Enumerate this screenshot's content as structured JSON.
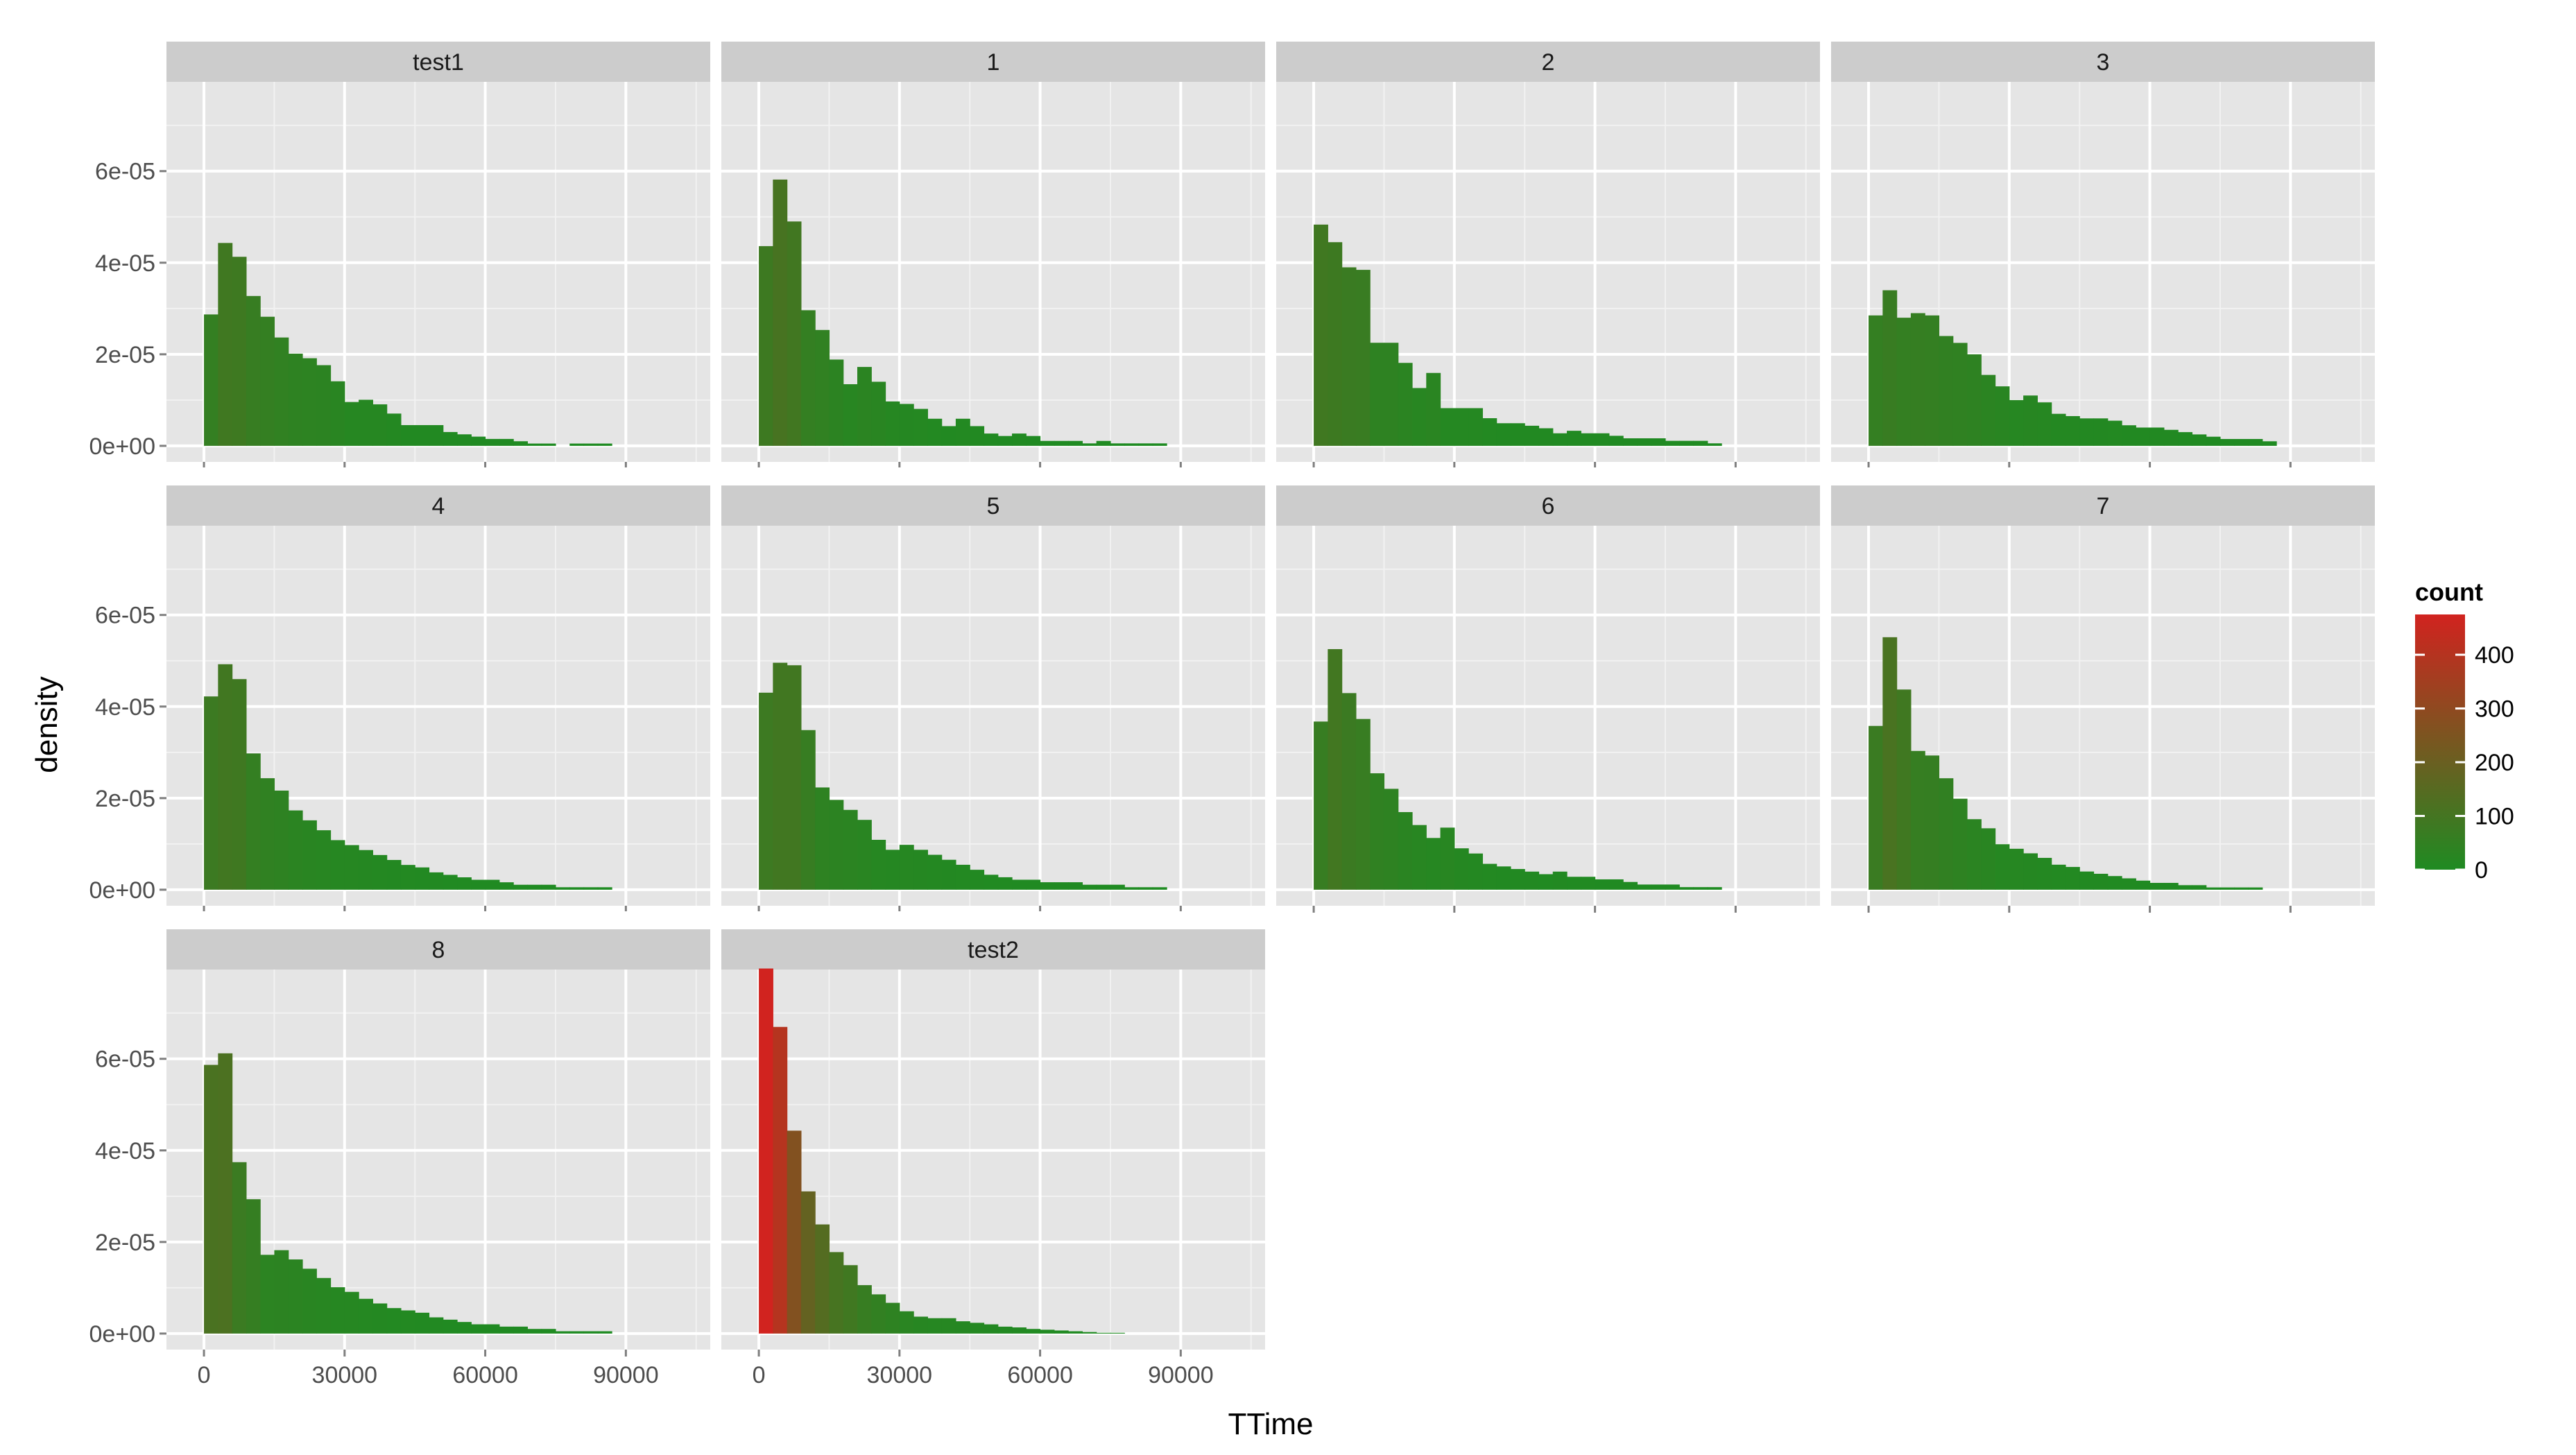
{
  "chart_data": {
    "type": "bar",
    "subtype": "faceted-histogram",
    "xlabel": "TTime",
    "ylabel": "density",
    "x_ticks": [
      0,
      30000,
      60000,
      90000
    ],
    "x_tick_labels": [
      "0",
      "30000",
      "60000",
      "90000"
    ],
    "y_ticks": [
      0,
      2e-05,
      4e-05,
      6e-05
    ],
    "y_tick_labels": [
      "0e+00",
      "2e-05",
      "4e-05",
      "6e-05"
    ],
    "xlim": [
      -8000,
      108000
    ],
    "ylim": [
      -3.5e-06,
      7.95e-05
    ],
    "bin_width": 3000,
    "bin_start": 0,
    "grid": true,
    "legend": {
      "title": "count",
      "position": "right",
      "breaks": [
        0,
        100,
        200,
        300,
        400
      ],
      "labels": [
        "0",
        "100",
        "200",
        "300",
        "400"
      ],
      "max": 475,
      "low_color": "#1f8b22",
      "high_color": "#d1231f"
    },
    "facets": [
      {
        "label": "test1",
        "counts": [
          57,
          88,
          82,
          65,
          56,
          47,
          40,
          38,
          35,
          28,
          19,
          20,
          18,
          14,
          9,
          9,
          9,
          6,
          5,
          4,
          3,
          3,
          2,
          1,
          1,
          0,
          1,
          1,
          1
        ]
      },
      {
        "label": "1",
        "counts": [
          81,
          108,
          91,
          55,
          47,
          35,
          25,
          32,
          26,
          18,
          17,
          15,
          11,
          8,
          11,
          8,
          5,
          4,
          5,
          4,
          2,
          2,
          2,
          1,
          2,
          1,
          1,
          1,
          1
        ]
      },
      {
        "label": "2",
        "counts": [
          88,
          81,
          71,
          70,
          41,
          41,
          33,
          23,
          29,
          15,
          15,
          15,
          11,
          9,
          9,
          8,
          7,
          5,
          6,
          5,
          5,
          4,
          3,
          3,
          3,
          2,
          2,
          2,
          1
        ]
      },
      {
        "label": "3",
        "counts": [
          57,
          68,
          56,
          58,
          57,
          48,
          45,
          40,
          31,
          26,
          20,
          22,
          19,
          14,
          13,
          12,
          12,
          11,
          9,
          8,
          8,
          7,
          6,
          5,
          4,
          3,
          3,
          3,
          2
        ]
      },
      {
        "label": "4",
        "counts": [
          78,
          91,
          85,
          55,
          45,
          40,
          32,
          28,
          24,
          20,
          18,
          16,
          14,
          12,
          10,
          9,
          7,
          6,
          5,
          4,
          4,
          3,
          2,
          2,
          2,
          1,
          1,
          1,
          1
        ]
      },
      {
        "label": "5",
        "counts": [
          79,
          91,
          90,
          64,
          41,
          36,
          32,
          28,
          20,
          16,
          18,
          16,
          14,
          12,
          10,
          8,
          6,
          5,
          4,
          4,
          3,
          3,
          3,
          2,
          2,
          2,
          1,
          1,
          1
        ]
      },
      {
        "label": "6",
        "counts": [
          65,
          93,
          76,
          66,
          45,
          39,
          30,
          25,
          20,
          24,
          16,
          14,
          10,
          9,
          8,
          7,
          6,
          7,
          5,
          5,
          4,
          4,
          3,
          2,
          2,
          2,
          1,
          1,
          1
        ]
      },
      {
        "label": "7",
        "counts": [
          72,
          111,
          88,
          61,
          59,
          49,
          40,
          31,
          27,
          20,
          18,
          16,
          14,
          11,
          10,
          8,
          7,
          6,
          5,
          4,
          3,
          3,
          2,
          2,
          1,
          1,
          1,
          1,
          0
        ]
      },
      {
        "label": "8",
        "counts": [
          116,
          121,
          74,
          58,
          34,
          36,
          32,
          28,
          24,
          20,
          18,
          15,
          13,
          11,
          10,
          9,
          7,
          6,
          5,
          4,
          4,
          3,
          3,
          2,
          2,
          1,
          1,
          1,
          1
        ]
      },
      {
        "label": "test2",
        "counts": [
          475,
          399,
          264,
          185,
          142,
          106,
          89,
          63,
          51,
          40,
          29,
          22,
          20,
          20,
          16,
          14,
          12,
          9,
          8,
          6,
          5,
          4,
          3,
          2,
          1,
          1,
          0,
          0,
          0
        ]
      }
    ]
  }
}
